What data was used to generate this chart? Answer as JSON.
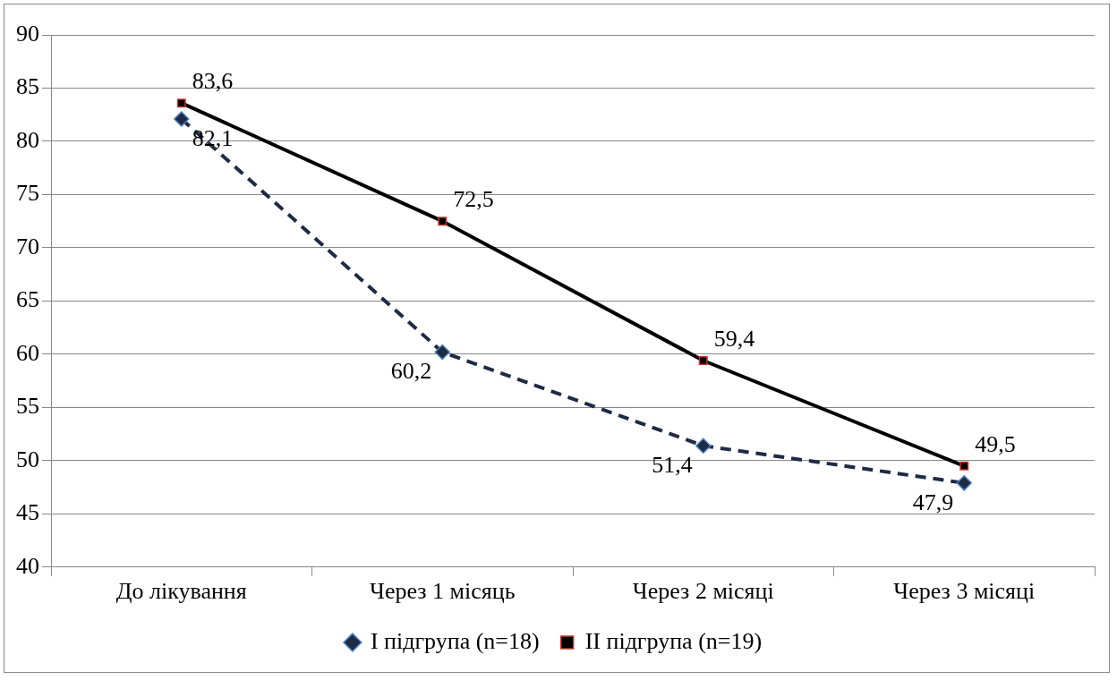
{
  "chart_data": {
    "type": "line",
    "categories": [
      "До лікування",
      "Через 1 місяць",
      "Через 2 місяці",
      "Через 3 місяці"
    ],
    "series": [
      {
        "name": "I підгрупа (n=18)",
        "color": "#1f2a44",
        "values": [
          82.1,
          60.2,
          51.4,
          47.9
        ],
        "value_labels": [
          "82,1",
          "60,2",
          "51,4",
          "47,9"
        ],
        "marker": "diamond",
        "line_style": "dashed"
      },
      {
        "name": "II підгрупа (n=19)",
        "color": "#000000",
        "values": [
          83.6,
          72.5,
          59.4,
          49.5
        ],
        "value_labels": [
          "83,6",
          "72,5",
          "59,4",
          "49,5"
        ],
        "marker": "square",
        "line_style": "solid"
      }
    ],
    "ylim": [
      40,
      90
    ],
    "yticks": [
      40,
      45,
      50,
      55,
      60,
      65,
      70,
      75,
      80,
      85,
      90
    ],
    "grid": "y",
    "legend": "bottom"
  }
}
